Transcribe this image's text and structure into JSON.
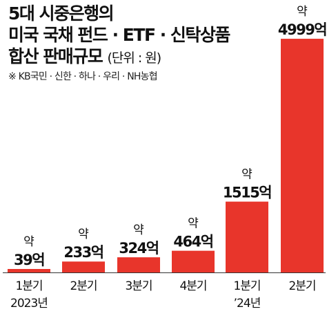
{
  "header": {
    "title_line1": "5대 시중은행의",
    "title_line2": "미국 국채 펀드 · ETF · 신탁상품",
    "title_line3": "합산 판매규모",
    "unit": "(단위 : 원)",
    "note": "※ KB국민 · 신한 · 하나 · 우리 · NH농협"
  },
  "chart_data": {
    "type": "bar",
    "categories": [
      [
        "1분기",
        "2023년"
      ],
      [
        "2분기",
        ""
      ],
      [
        "3분기",
        ""
      ],
      [
        "4분기",
        ""
      ],
      [
        "1분기",
        "’24년"
      ],
      [
        "2분기",
        ""
      ]
    ],
    "values": [
      39,
      233,
      324,
      464,
      1515,
      4999
    ],
    "value_prefix": "약",
    "value_labels": [
      "39억",
      "233억",
      "324억",
      "464억",
      "1515억",
      "4999억"
    ],
    "unit": "억원",
    "bar_color": "#e8352b",
    "ylim": [
      0,
      5000
    ],
    "grid": false,
    "legend": false
  }
}
